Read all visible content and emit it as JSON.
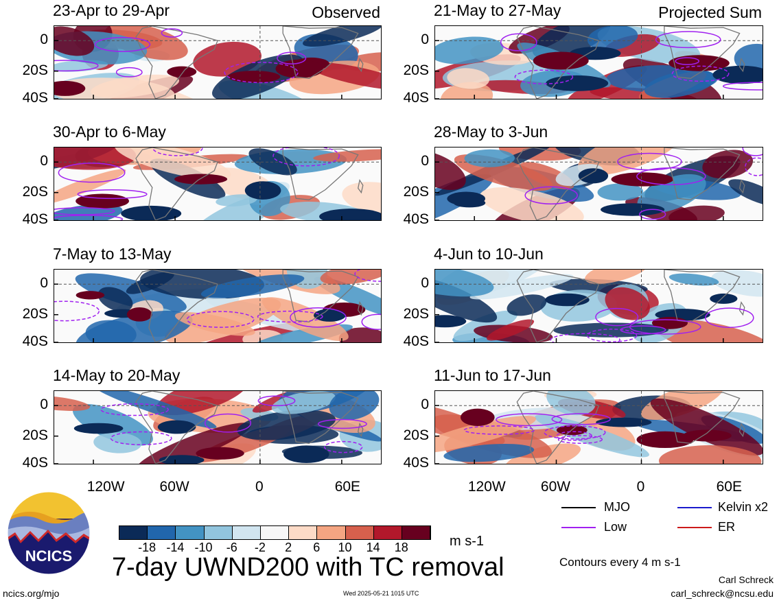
{
  "panels": [
    {
      "title": "23-Apr to 29-Apr",
      "tag": "Observed",
      "row": 0,
      "col": 0,
      "seed": 1
    },
    {
      "title": "30-Apr to 6-May",
      "tag": "",
      "row": 1,
      "col": 0,
      "seed": 2
    },
    {
      "title": "7-May to 13-May",
      "tag": "",
      "row": 2,
      "col": 0,
      "seed": 3
    },
    {
      "title": "14-May to 20-May",
      "tag": "",
      "row": 3,
      "col": 0,
      "seed": 4
    },
    {
      "title": "21-May to 27-May",
      "tag": "Projected Sum",
      "row": 0,
      "col": 1,
      "seed": 5
    },
    {
      "title": "28-May to 3-Jun",
      "tag": "",
      "row": 1,
      "col": 1,
      "seed": 6
    },
    {
      "title": "4-Jun to 10-Jun",
      "tag": "",
      "row": 2,
      "col": 1,
      "seed": 7
    },
    {
      "title": "11-Jun to 17-Jun",
      "tag": "",
      "row": 3,
      "col": 1,
      "seed": 8
    }
  ],
  "y_ticks": [
    "0",
    "20S",
    "40S"
  ],
  "x_ticks": [
    "120W",
    "60W",
    "0",
    "60E"
  ],
  "colorbar": {
    "colors": [
      "#0b2a57",
      "#2166ac",
      "#4393c3",
      "#92c5de",
      "#d1e5f0",
      "#f7f7f7",
      "#fddbc7",
      "#f4a582",
      "#d6604d",
      "#b2182b",
      "#67001f"
    ],
    "labels": [
      "-18",
      "-14",
      "-10",
      "-6",
      "-2",
      "2",
      "6",
      "10",
      "14",
      "18"
    ],
    "units": "m s-1"
  },
  "main_title": "7-day UWND200 with TC removal",
  "legend": {
    "mjo": "MJO",
    "kelvin": "Kelvin x2",
    "low": "Low",
    "er": "ER",
    "mjo_color": "#000000",
    "kelvin_color": "#1a1acc",
    "low_color": "#a020f0",
    "er_color": "#cc1a1a"
  },
  "contours_note": "Contours every 4 m s-1",
  "author": "Carl Schreck",
  "email": "carl_schreck@ncsu.edu",
  "site": "ncics.org/mjo",
  "timestamp": "Wed 2025-05-21 1015 UTC",
  "logo_text": "NCICS"
}
